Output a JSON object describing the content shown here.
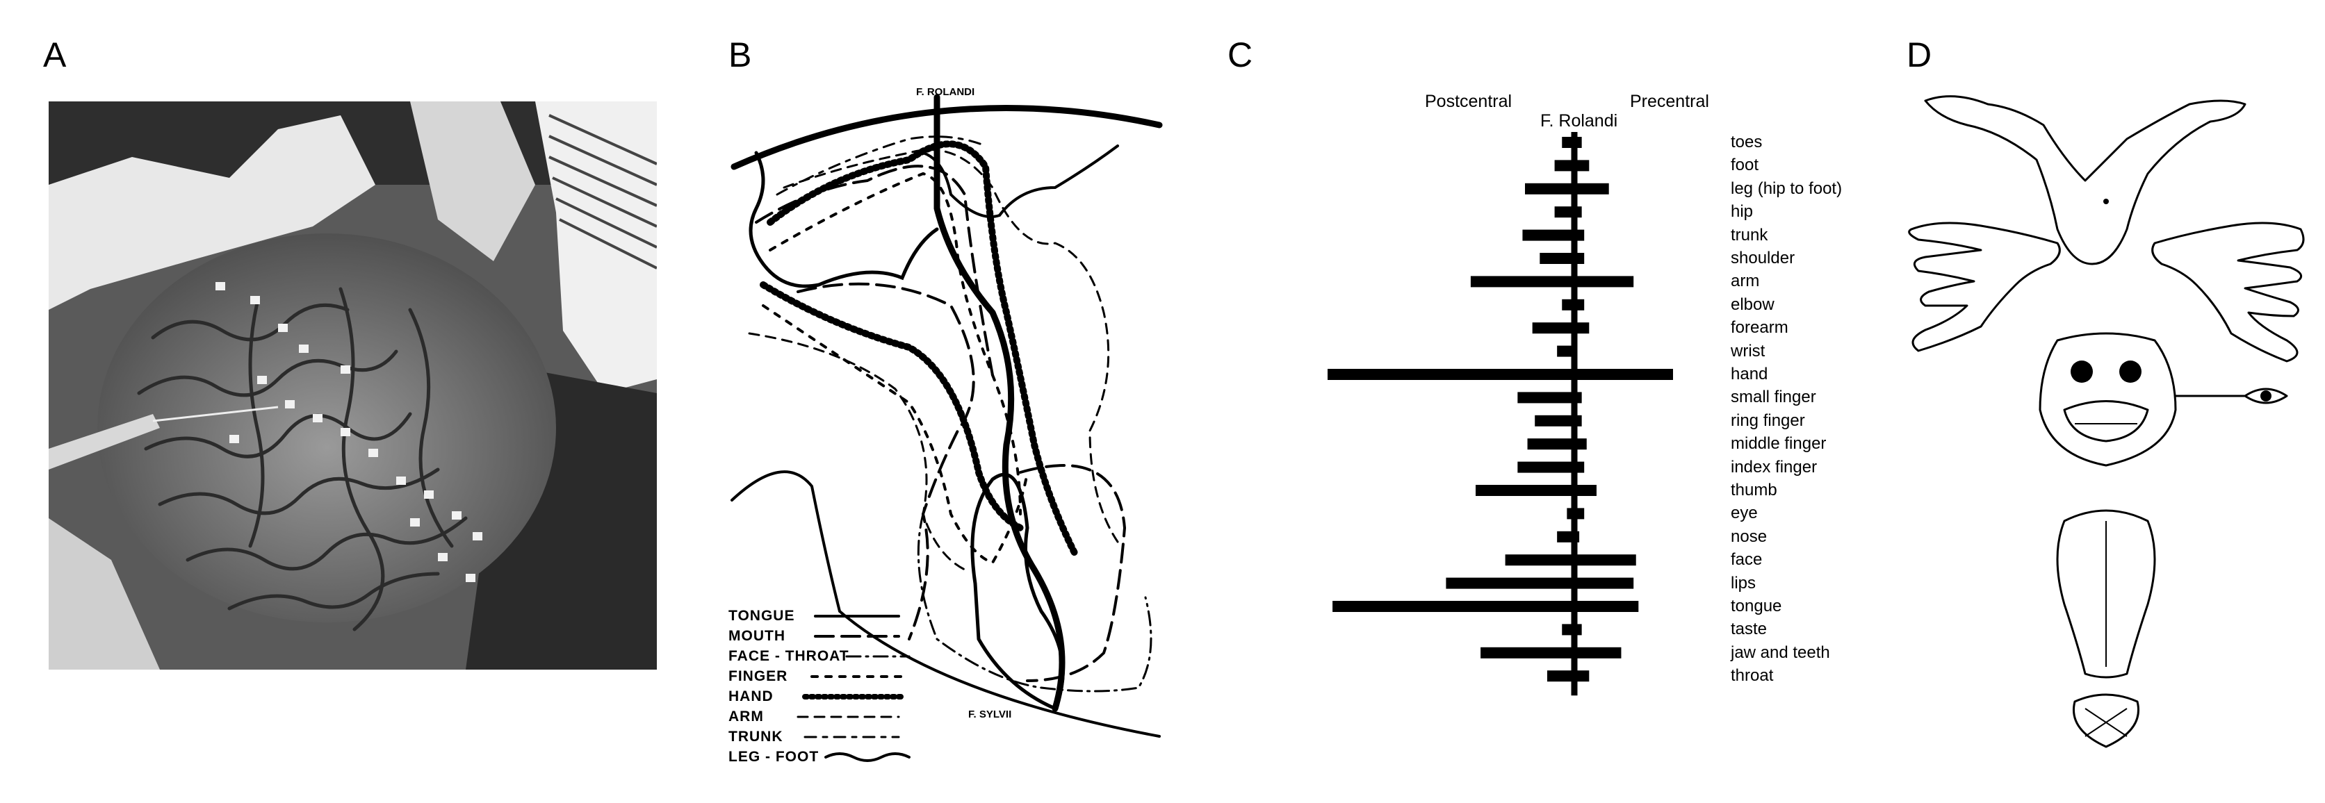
{
  "panels": {
    "a": "A",
    "b": "B",
    "c": "C",
    "d": "D"
  },
  "drawing": {
    "top_label": "F. ROLANDI",
    "bottom_label": "F. SYLVII",
    "legend": [
      {
        "label": "TONGUE",
        "style": "solid"
      },
      {
        "label": "MOUTH",
        "style": "long-dash"
      },
      {
        "label": "FACE - THROAT",
        "style": "dash-dot"
      },
      {
        "label": "FINGER",
        "style": "circles"
      },
      {
        "label": "HAND",
        "style": "dotted"
      },
      {
        "label": "ARM",
        "style": "dash-cross"
      },
      {
        "label": "TRUNK",
        "style": "dash-circle"
      },
      {
        "label": "LEG - FOOT",
        "style": "wavy"
      }
    ]
  },
  "chart_data": {
    "type": "bar",
    "orientation": "horizontal-diverging",
    "column_labels": {
      "left": "Postcentral",
      "center": "F. Rolandi",
      "right": "Precentral"
    },
    "categories": [
      "toes",
      "foot",
      "leg (hip to foot)",
      "hip",
      "trunk",
      "shoulder",
      "arm",
      "elbow",
      "forearm",
      "wrist",
      "hand",
      "small finger",
      "ring finger",
      "middle finger",
      "index finger",
      "thumb",
      "eye",
      "nose",
      "face",
      "lips",
      "tongue",
      "taste",
      "jaw and teeth",
      "throat"
    ],
    "series": [
      {
        "name": "Postcentral",
        "values": [
          2.5,
          4,
          10,
          4,
          10.5,
          7,
          21,
          2.5,
          8.5,
          3.5,
          50,
          11.5,
          8,
          9.5,
          11.5,
          20,
          1.5,
          3.5,
          14,
          26,
          49,
          2.5,
          19,
          5.5
        ]
      },
      {
        "name": "Precentral",
        "values": [
          1.5,
          3,
          7,
          1.5,
          2,
          2,
          12,
          2,
          3,
          0.5,
          20,
          1.5,
          1.5,
          2.5,
          2,
          4.5,
          2,
          1,
          12.5,
          12,
          13,
          1.5,
          9.5,
          3
        ]
      }
    ]
  }
}
